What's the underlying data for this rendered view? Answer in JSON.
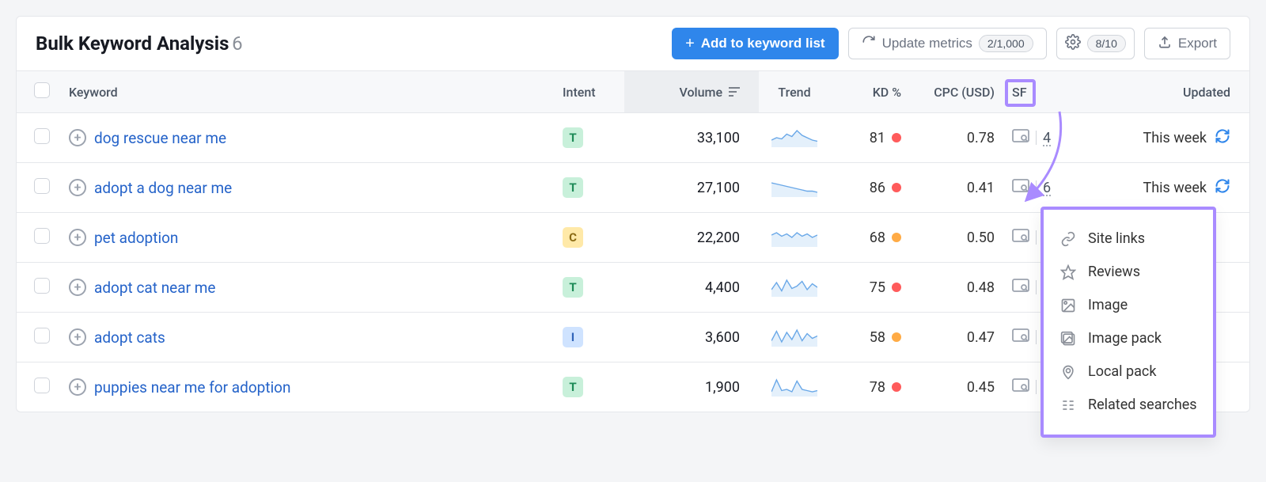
{
  "title": "Bulk Keyword Analysis",
  "count": "6",
  "toolbar": {
    "add_label": "Add to keyword list",
    "update_label": "Update metrics",
    "update_counter": "2/1,000",
    "settings_counter": "8/10",
    "export_label": "Export"
  },
  "columns": {
    "keyword": "Keyword",
    "intent": "Intent",
    "volume": "Volume",
    "trend": "Trend",
    "kd": "KD %",
    "cpc": "CPC (USD)",
    "sf": "SF",
    "updated": "Updated"
  },
  "kd_colors": {
    "red": "#ff5b5b",
    "orange": "#ffab45"
  },
  "trend_style": {
    "stroke": "#6aa8e8",
    "fill": "#e4f0fb"
  },
  "rows": [
    {
      "keyword": "dog rescue near me",
      "intent": "T",
      "volume": "33,100",
      "trend": [
        6,
        8,
        7,
        11,
        9,
        14,
        10,
        8,
        6,
        5
      ],
      "kd": "81",
      "kd_color": "red",
      "cpc": "0.78",
      "sf": "4",
      "updated": "This week"
    },
    {
      "keyword": "adopt a dog near me",
      "intent": "T",
      "volume": "27,100",
      "trend": [
        12,
        11,
        10,
        9,
        8,
        7,
        6,
        5,
        5,
        4
      ],
      "kd": "86",
      "kd_color": "red",
      "cpc": "0.41",
      "sf": "6",
      "updated": "This week"
    },
    {
      "keyword": "pet adoption",
      "intent": "C",
      "volume": "22,200",
      "trend": [
        10,
        12,
        9,
        11,
        8,
        12,
        9,
        11,
        8,
        10
      ],
      "kd": "68",
      "kd_color": "orange",
      "cpc": "0.50",
      "sf": "",
      "updated": ""
    },
    {
      "keyword": "adopt cat near me",
      "intent": "T",
      "volume": "4,400",
      "trend": [
        6,
        12,
        5,
        14,
        7,
        9,
        13,
        6,
        11,
        8
      ],
      "kd": "75",
      "kd_color": "red",
      "cpc": "0.48",
      "sf": "",
      "updated": ""
    },
    {
      "keyword": "adopt cats",
      "intent": "I",
      "volume": "3,600",
      "trend": [
        5,
        13,
        4,
        12,
        6,
        14,
        5,
        11,
        7,
        9
      ],
      "kd": "58",
      "kd_color": "orange",
      "cpc": "0.47",
      "sf": "",
      "updated": ""
    },
    {
      "keyword": "puppies near me for adoption",
      "intent": "T",
      "volume": "1,900",
      "trend": [
        4,
        14,
        5,
        6,
        4,
        13,
        6,
        5,
        4,
        5
      ],
      "kd": "78",
      "kd_color": "red",
      "cpc": "0.45",
      "sf": "",
      "updated": ""
    }
  ],
  "popover": {
    "items": [
      {
        "icon": "link",
        "label": "Site links"
      },
      {
        "icon": "star",
        "label": "Reviews"
      },
      {
        "icon": "image",
        "label": "Image"
      },
      {
        "icon": "imgpack",
        "label": "Image pack"
      },
      {
        "icon": "pin",
        "label": "Local pack"
      },
      {
        "icon": "list",
        "label": "Related searches"
      }
    ]
  },
  "highlight_color": "#a98bff"
}
